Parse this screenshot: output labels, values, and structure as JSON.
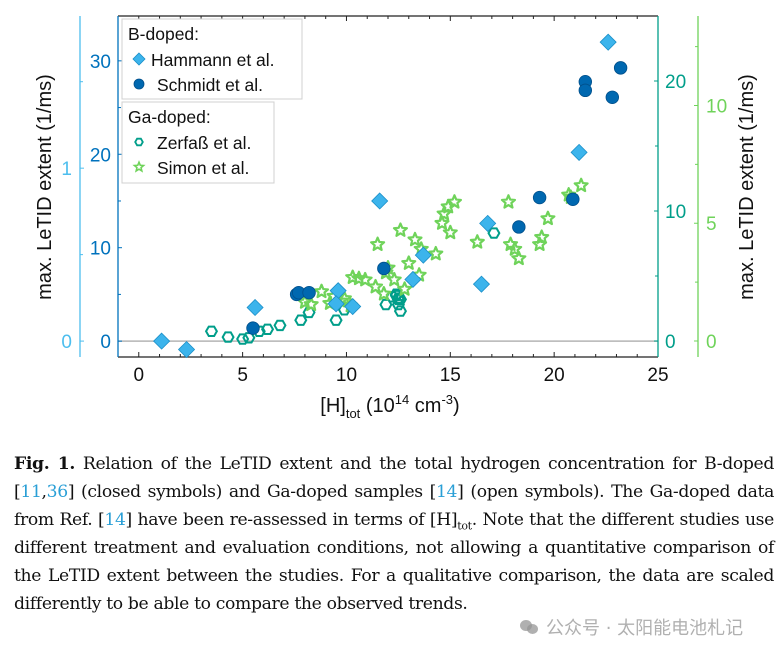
{
  "chart_data": {
    "type": "scatter",
    "title": "",
    "xlabel": "[H]tot (10^14 cm^-3)",
    "xlabel_parts": {
      "main": "[H]",
      "sub": "tot",
      "rest_pre": " (10",
      "sup1": "14",
      "mid": " cm",
      "sup2": "-3",
      "end": ")"
    },
    "xlim": [
      -1,
      25
    ],
    "xticks": [
      0,
      5,
      10,
      15,
      20,
      25
    ],
    "grid": false,
    "zero_line": true,
    "ylabel_left": "max. LeTID extent (1/ms)",
    "ylabel_right": "max. LeTID extent (1/ms)",
    "axes": [
      {
        "id": "hammann",
        "side": "left-inner",
        "color": "#0072bd",
        "ylim": [
          -1.7,
          34.8
        ],
        "ticks": [
          0,
          10,
          20,
          30
        ],
        "minor_ticks": [
          5,
          15,
          25
        ]
      },
      {
        "id": "schmidt",
        "side": "left-outer",
        "color": "#4dbeee",
        "ylim": [
          -0.092,
          1.88
        ],
        "ticks": [
          0,
          1
        ],
        "minor_ticks": [
          0.5,
          1.5
        ]
      },
      {
        "id": "zerfass",
        "side": "right-inner",
        "color": "#009e8a",
        "ylim": [
          -1.23,
          25.0
        ],
        "ticks": [
          0,
          10,
          20
        ],
        "minor_ticks": [
          5,
          15
        ]
      },
      {
        "id": "simon",
        "side": "right-outer",
        "color": "#6fd35a",
        "ylim": [
          -0.68,
          13.8
        ],
        "ticks": [
          0,
          5,
          10
        ],
        "minor_ticks": [
          2.5,
          7.5,
          12.5
        ]
      }
    ],
    "legend": {
      "placement": "top-left",
      "groups": [
        {
          "title": "B-doped:",
          "entries": [
            {
              "label": "Hammann et al.",
              "marker": "diamond-filled",
              "color": "#3cb4ec"
            },
            {
              "label": "Schmidt et al.",
              "marker": "circle-filled",
              "color": "#0068b0"
            }
          ]
        },
        {
          "title": "Ga-doped:",
          "entries": [
            {
              "label": "Zerfaß et al.",
              "marker": "hexagon-open",
              "color": "#009e8a"
            },
            {
              "label": "Simon et al.",
              "marker": "star-open",
              "color": "#6fd35a"
            }
          ]
        }
      ]
    },
    "series": [
      {
        "name": "Hammann et al.",
        "axis": "hammann",
        "marker": "diamond",
        "color": "#3cb4ec",
        "edge": "#1a8fc8",
        "points": [
          [
            1.1,
            0.0
          ],
          [
            2.3,
            -0.9
          ],
          [
            5.6,
            3.6
          ],
          [
            9.6,
            5.4
          ],
          [
            9.5,
            4.0
          ],
          [
            10.3,
            3.7
          ],
          [
            11.6,
            15.0
          ],
          [
            13.2,
            6.6
          ],
          [
            13.7,
            9.2
          ],
          [
            16.5,
            6.1
          ],
          [
            16.8,
            12.6
          ],
          [
            21.2,
            20.2
          ],
          [
            22.6,
            32.0
          ]
        ]
      },
      {
        "name": "Schmidt et al.",
        "axis": "schmidt",
        "marker": "circle",
        "color": "#0068b0",
        "edge": "#004f8a",
        "points": [
          [
            5.5,
            0.075
          ],
          [
            7.6,
            0.27
          ],
          [
            7.7,
            0.28
          ],
          [
            8.2,
            0.28
          ],
          [
            11.8,
            0.42
          ],
          [
            18.3,
            0.66
          ],
          [
            19.3,
            0.83
          ],
          [
            20.9,
            0.82
          ],
          [
            21.5,
            1.5
          ],
          [
            21.5,
            1.45
          ],
          [
            22.8,
            1.41
          ],
          [
            23.2,
            1.58
          ]
        ]
      },
      {
        "name": "Zerfaß et al.",
        "axis": "zerfass",
        "marker": "hexagon",
        "color": "#009e8a",
        "points": [
          [
            3.5,
            0.75
          ],
          [
            4.3,
            0.3
          ],
          [
            5.0,
            0.15
          ],
          [
            5.3,
            0.25
          ],
          [
            5.8,
            0.75
          ],
          [
            6.2,
            0.9
          ],
          [
            6.8,
            1.2
          ],
          [
            7.8,
            1.6
          ],
          [
            8.2,
            2.2
          ],
          [
            9.5,
            1.6
          ],
          [
            9.9,
            2.4
          ],
          [
            11.9,
            2.8
          ],
          [
            12.2,
            3.4
          ],
          [
            12.5,
            3.2
          ],
          [
            12.4,
            3.5
          ],
          [
            12.6,
            3.2
          ],
          [
            12.5,
            2.8
          ],
          [
            12.5,
            3.3
          ],
          [
            12.4,
            3.6
          ],
          [
            17.1,
            8.3
          ],
          [
            12.6,
            2.3
          ]
        ]
      },
      {
        "name": "Simon et al.",
        "axis": "simon",
        "marker": "star",
        "color": "#6fd35a",
        "points": [
          [
            8.0,
            1.65
          ],
          [
            8.3,
            1.55
          ],
          [
            8.8,
            2.1
          ],
          [
            9.2,
            1.6
          ],
          [
            9.4,
            1.9
          ],
          [
            9.7,
            1.7
          ],
          [
            9.9,
            1.8
          ],
          [
            10.2,
            1.5
          ],
          [
            10.3,
            2.7
          ],
          [
            10.6,
            2.65
          ],
          [
            10.9,
            2.6
          ],
          [
            11.4,
            2.3
          ],
          [
            11.5,
            4.1
          ],
          [
            11.8,
            2.0
          ],
          [
            11.9,
            2.9
          ],
          [
            12.0,
            3.1
          ],
          [
            12.3,
            2.6
          ],
          [
            12.6,
            4.7
          ],
          [
            12.8,
            2.2
          ],
          [
            13.0,
            3.3
          ],
          [
            13.3,
            4.3
          ],
          [
            13.5,
            2.8
          ],
          [
            13.6,
            3.9
          ],
          [
            14.3,
            3.7
          ],
          [
            14.6,
            5.0
          ],
          [
            14.7,
            5.4
          ],
          [
            14.9,
            5.7
          ],
          [
            15.2,
            5.9
          ],
          [
            15.0,
            4.6
          ],
          [
            16.3,
            4.2
          ],
          [
            17.8,
            5.9
          ],
          [
            17.9,
            4.1
          ],
          [
            18.1,
            3.9
          ],
          [
            18.3,
            3.5
          ],
          [
            19.3,
            4.1
          ],
          [
            19.7,
            5.2
          ],
          [
            19.4,
            4.4
          ],
          [
            20.8,
            6.1
          ],
          [
            21.3,
            6.6
          ],
          [
            20.7,
            6.2
          ]
        ]
      }
    ]
  },
  "caption": {
    "fig_label": "Fig. 1.",
    "segments": [
      {
        "t": " Relation of the LeTID extent and the total hydrogen concentration for B-doped "
      },
      {
        "t": "[",
        "ref": false
      },
      {
        "t": "11",
        "ref": true
      },
      {
        "t": ",",
        "ref": false
      },
      {
        "t": "36",
        "ref": true
      },
      {
        "t": "] (closed symbols) and Ga-doped samples ["
      },
      {
        "t": "14",
        "ref": true
      },
      {
        "t": "] (open symbols). The Ga-doped data from Ref. ["
      },
      {
        "t": "14",
        "ref": true
      },
      {
        "t": "] have been re-assessed in terms of [H]"
      },
      {
        "t": "tot",
        "sub": true
      },
      {
        "t": ". Note that the different studies use different treatment and evaluation conditions, not allowing a quantitative comparison of the LeTID extent between the studies. For a qualitative comparison, the data are scaled differently to be able to compare the observed trends."
      }
    ],
    "ref_color": "#2a9fd6"
  },
  "watermark": {
    "text": "公众号 · 太阳能电池札记"
  }
}
